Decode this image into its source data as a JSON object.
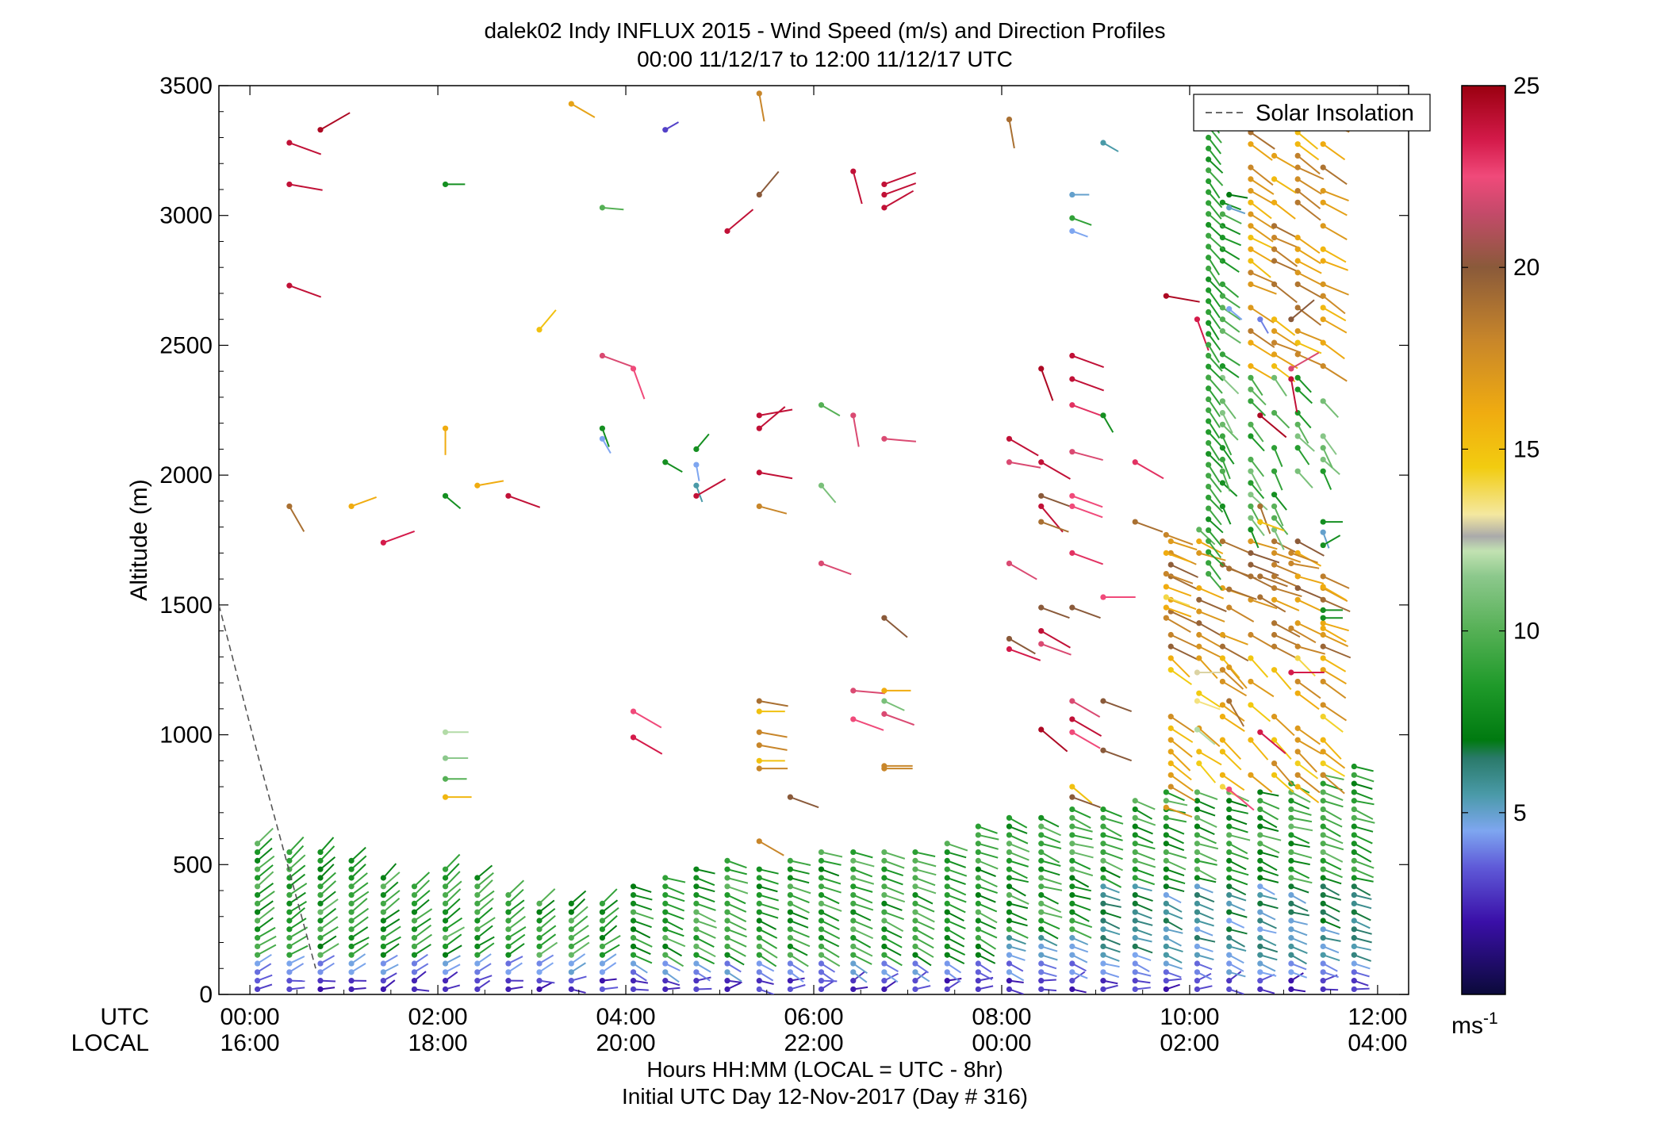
{
  "chart_data": {
    "type": "scatter",
    "title": "dalek02 Indy INFLUX 2015 - Wind Speed (m/s) and Direction Profiles",
    "subtitle": "00:00 11/12/17 to 12:00 11/12/17  UTC",
    "ylabel": "Altitude (m)",
    "xlabel": "Hours HH:MM  (LOCAL = UTC - 8hr)",
    "xlabel2": "Initial UTC Day 12-Nov-2017 (Day # 316)",
    "ylim": [
      0,
      3500
    ],
    "xlim": [
      -0.33,
      12.33
    ],
    "y_ticks": [
      0,
      500,
      1000,
      1500,
      2000,
      2500,
      3000,
      3500
    ],
    "y_tick_labels": [
      "0",
      "500",
      "1000",
      "1500",
      "2000",
      "2500",
      "3000",
      "3500"
    ],
    "x_ticks": [
      0,
      2,
      4,
      6,
      8,
      10,
      12
    ],
    "row_label_utc": "UTC",
    "row_label_local": "LOCAL",
    "x_tick_labels_utc": [
      "00:00",
      "02:00",
      "04:00",
      "06:00",
      "08:00",
      "10:00",
      "12:00"
    ],
    "x_tick_labels_local": [
      "16:00",
      "18:00",
      "20:00",
      "22:00",
      "00:00",
      "02:00",
      "04:00"
    ],
    "legend": {
      "placement": "top-right",
      "entries": [
        "Solar Insolation"
      ]
    },
    "solar_insolation_line": {
      "x": [
        -0.33,
        0.1,
        0.7
      ],
      "y": [
        1500,
        900,
        100
      ],
      "style": "dashed",
      "color": "#555555"
    },
    "colorbar": {
      "min": 0,
      "max": 25,
      "ticks": [
        5,
        10,
        15,
        20,
        25
      ],
      "tick_labels": [
        "5",
        "10",
        "15",
        "20",
        "25"
      ],
      "unit_base": "ms",
      "unit_exp": "-1",
      "stops": [
        {
          "v": 0,
          "c": "#0b0a3a"
        },
        {
          "v": 2,
          "c": "#3a0fa8"
        },
        {
          "v": 3.5,
          "c": "#5f5ad8"
        },
        {
          "v": 4.5,
          "c": "#7ea6f0"
        },
        {
          "v": 5.5,
          "c": "#4a9aa8"
        },
        {
          "v": 6.5,
          "c": "#2a7a6a"
        },
        {
          "v": 7,
          "c": "#007a10"
        },
        {
          "v": 8.5,
          "c": "#1f9a2a"
        },
        {
          "v": 10,
          "c": "#55b055"
        },
        {
          "v": 11.5,
          "c": "#8cc88c"
        },
        {
          "v": 12.2,
          "c": "#c2e2b2"
        },
        {
          "v": 12.6,
          "c": "#aaaaaa"
        },
        {
          "v": 13.2,
          "c": "#f4e8a0"
        },
        {
          "v": 14.5,
          "c": "#f2cc10"
        },
        {
          "v": 16,
          "c": "#f0ac10"
        },
        {
          "v": 18,
          "c": "#c8862a"
        },
        {
          "v": 20,
          "c": "#8a5a3a"
        },
        {
          "v": 21.5,
          "c": "#c44a6a"
        },
        {
          "v": 22.5,
          "c": "#f04a7a"
        },
        {
          "v": 23.5,
          "c": "#d41a4a"
        },
        {
          "v": 25,
          "c": "#9a0010"
        }
      ]
    },
    "profile_times": [
      0.08,
      0.42,
      0.75,
      1.08,
      1.42,
      1.75,
      2.08,
      2.42,
      2.75,
      3.08,
      3.42,
      3.75,
      4.08,
      4.42,
      4.75,
      5.08,
      5.42,
      5.75,
      6.08,
      6.42,
      6.75,
      7.08,
      7.42,
      7.75,
      8.08,
      8.42,
      8.75,
      9.08,
      9.42,
      9.75,
      10.08,
      10.42,
      10.75,
      11.08,
      11.42,
      11.75
    ],
    "boundary_layer_top_m": [
      590,
      555,
      555,
      530,
      460,
      420,
      490,
      470,
      400,
      380,
      360,
      365,
      420,
      480,
      510,
      520,
      500,
      540,
      570,
      560,
      550,
      580,
      600,
      650,
      690,
      710,
      730,
      740,
      760,
      780,
      790,
      800,
      810,
      820,
      860,
      900
    ],
    "upper_observations": [
      {
        "t": 0.42,
        "z": 3280,
        "s": 24,
        "d": 250
      },
      {
        "t": 0.42,
        "z": 3120,
        "s": 24,
        "d": 260
      },
      {
        "t": 0.42,
        "z": 2730,
        "s": 24,
        "d": 250
      },
      {
        "t": 0.75,
        "z": 3330,
        "s": 24.5,
        "d": 300
      },
      {
        "t": 0.42,
        "z": 1880,
        "s": 19,
        "d": 210
      },
      {
        "t": 1.08,
        "z": 1880,
        "s": 16,
        "d": 290
      },
      {
        "t": 1.42,
        "z": 1740,
        "s": 23.5,
        "d": 290
      },
      {
        "t": 2.08,
        "z": 3120,
        "s": 8,
        "d": 270
      },
      {
        "t": 2.08,
        "z": 2180,
        "s": 16,
        "d": 180
      },
      {
        "t": 2.08,
        "z": 1920,
        "s": 8,
        "d": 230
      },
      {
        "t": 2.42,
        "z": 1960,
        "s": 16,
        "d": 280
      },
      {
        "t": 2.75,
        "z": 1920,
        "s": 24,
        "d": 250
      },
      {
        "t": 3.08,
        "z": 2560,
        "s": 15,
        "d": 320
      },
      {
        "t": 3.42,
        "z": 3430,
        "s": 16.5,
        "d": 240
      },
      {
        "t": 3.75,
        "z": 3030,
        "s": 10,
        "d": 265
      },
      {
        "t": 3.75,
        "z": 2460,
        "s": 22,
        "d": 250
      },
      {
        "t": 3.75,
        "z": 2180,
        "s": 8,
        "d": 200
      },
      {
        "t": 3.75,
        "z": 2140,
        "s": 4.5,
        "d": 210
      },
      {
        "t": 2.08,
        "z": 1010,
        "s": 12,
        "d": 270
      },
      {
        "t": 2.08,
        "z": 910,
        "s": 11.5,
        "d": 270
      },
      {
        "t": 2.08,
        "z": 830,
        "s": 10,
        "d": 270
      },
      {
        "t": 2.08,
        "z": 760,
        "s": 15.5,
        "d": 270
      },
      {
        "t": 4.08,
        "z": 2410,
        "s": 22.5,
        "d": 200
      },
      {
        "t": 4.08,
        "z": 1090,
        "s": 22.5,
        "d": 240
      },
      {
        "t": 4.08,
        "z": 990,
        "s": 23.5,
        "d": 240
      },
      {
        "t": 4.42,
        "z": 3330,
        "s": 3,
        "d": 300
      },
      {
        "t": 4.42,
        "z": 2050,
        "s": 8,
        "d": 240
      },
      {
        "t": 4.75,
        "z": 2100,
        "s": 8,
        "d": 320
      },
      {
        "t": 4.75,
        "z": 2040,
        "s": 4.5,
        "d": 190
      },
      {
        "t": 4.75,
        "z": 1960,
        "s": 5.5,
        "d": 200
      },
      {
        "t": 4.75,
        "z": 1920,
        "s": 24,
        "d": 300
      },
      {
        "t": 5.08,
        "z": 2940,
        "s": 24,
        "d": 310
      },
      {
        "t": 5.42,
        "z": 3470,
        "s": 18,
        "d": 190
      },
      {
        "t": 5.42,
        "z": 3080,
        "s": 20,
        "d": 320
      },
      {
        "t": 5.42,
        "z": 2230,
        "s": 24,
        "d": 280
      },
      {
        "t": 5.42,
        "z": 2180,
        "s": 24,
        "d": 310
      },
      {
        "t": 5.42,
        "z": 2010,
        "s": 24,
        "d": 260
      },
      {
        "t": 5.42,
        "z": 1880,
        "s": 18,
        "d": 255
      },
      {
        "t": 5.42,
        "z": 1130,
        "s": 19,
        "d": 260
      },
      {
        "t": 5.42,
        "z": 1090,
        "s": 15,
        "d": 270
      },
      {
        "t": 5.42,
        "z": 1010,
        "s": 18,
        "d": 260
      },
      {
        "t": 5.42,
        "z": 960,
        "s": 18,
        "d": 260
      },
      {
        "t": 5.42,
        "z": 900,
        "s": 15,
        "d": 270
      },
      {
        "t": 5.42,
        "z": 870,
        "s": 18,
        "d": 270
      },
      {
        "t": 5.42,
        "z": 590,
        "s": 18,
        "d": 240
      },
      {
        "t": 5.75,
        "z": 760,
        "s": 20,
        "d": 250
      },
      {
        "t": 6.08,
        "z": 2270,
        "s": 10,
        "d": 240
      },
      {
        "t": 6.08,
        "z": 1960,
        "s": 11,
        "d": 220
      },
      {
        "t": 6.08,
        "z": 1660,
        "s": 22,
        "d": 250
      },
      {
        "t": 6.42,
        "z": 3170,
        "s": 24,
        "d": 195
      },
      {
        "t": 6.42,
        "z": 2230,
        "s": 22,
        "d": 190
      },
      {
        "t": 6.42,
        "z": 1170,
        "s": 22,
        "d": 265
      },
      {
        "t": 6.42,
        "z": 1060,
        "s": 22.5,
        "d": 250
      },
      {
        "t": 6.75,
        "z": 3120,
        "s": 24,
        "d": 290
      },
      {
        "t": 6.75,
        "z": 3080,
        "s": 24,
        "d": 290
      },
      {
        "t": 6.75,
        "z": 3030,
        "s": 24,
        "d": 300
      },
      {
        "t": 6.75,
        "z": 2140,
        "s": 22,
        "d": 265
      },
      {
        "t": 6.75,
        "z": 1450,
        "s": 20,
        "d": 230
      },
      {
        "t": 6.75,
        "z": 1170,
        "s": 16,
        "d": 270
      },
      {
        "t": 6.75,
        "z": 1130,
        "s": 11,
        "d": 245
      },
      {
        "t": 6.75,
        "z": 1080,
        "s": 22,
        "d": 250
      },
      {
        "t": 6.75,
        "z": 880,
        "s": 18,
        "d": 270
      },
      {
        "t": 6.75,
        "z": 870,
        "s": 18,
        "d": 270
      },
      {
        "t": 8.08,
        "z": 3370,
        "s": 19,
        "d": 190
      },
      {
        "t": 8.08,
        "z": 2140,
        "s": 24,
        "d": 240
      },
      {
        "t": 8.08,
        "z": 2050,
        "s": 22,
        "d": 260
      },
      {
        "t": 8.08,
        "z": 1660,
        "s": 22,
        "d": 240
      },
      {
        "t": 8.08,
        "z": 1370,
        "s": 20,
        "d": 240
      },
      {
        "t": 8.08,
        "z": 1330,
        "s": 23.5,
        "d": 250
      },
      {
        "t": 8.42,
        "z": 2410,
        "s": 24.5,
        "d": 200
      },
      {
        "t": 8.42,
        "z": 2050,
        "s": 24,
        "d": 240
      },
      {
        "t": 8.42,
        "z": 1920,
        "s": 20,
        "d": 250
      },
      {
        "t": 8.42,
        "z": 1880,
        "s": 24,
        "d": 220
      },
      {
        "t": 8.42,
        "z": 1820,
        "s": 19,
        "d": 250
      },
      {
        "t": 8.42,
        "z": 1490,
        "s": 20,
        "d": 250
      },
      {
        "t": 8.42,
        "z": 1400,
        "s": 24,
        "d": 240
      },
      {
        "t": 8.42,
        "z": 1350,
        "s": 22,
        "d": 250
      },
      {
        "t": 8.42,
        "z": 1020,
        "s": 24.5,
        "d": 230
      },
      {
        "t": 8.75,
        "z": 2460,
        "s": 24,
        "d": 250
      },
      {
        "t": 8.75,
        "z": 2370,
        "s": 24,
        "d": 250
      },
      {
        "t": 8.75,
        "z": 2270,
        "s": 23,
        "d": 250
      },
      {
        "t": 8.75,
        "z": 2090,
        "s": 22,
        "d": 255
      },
      {
        "t": 8.75,
        "z": 1920,
        "s": 22.5,
        "d": 250
      },
      {
        "t": 8.75,
        "z": 1880,
        "s": 22.5,
        "d": 250
      },
      {
        "t": 8.75,
        "z": 1700,
        "s": 23,
        "d": 250
      },
      {
        "t": 8.75,
        "z": 1490,
        "s": 20,
        "d": 250
      },
      {
        "t": 8.75,
        "z": 1130,
        "s": 22,
        "d": 240
      },
      {
        "t": 8.75,
        "z": 1060,
        "s": 24,
        "d": 240
      },
      {
        "t": 8.75,
        "z": 1010,
        "s": 22.5,
        "d": 240
      },
      {
        "t": 8.75,
        "z": 800,
        "s": 15,
        "d": 230
      },
      {
        "t": 8.75,
        "z": 760,
        "s": 20,
        "d": 250
      },
      {
        "t": 8.75,
        "z": 3080,
        "s": 5,
        "d": 270
      },
      {
        "t": 8.75,
        "z": 2990,
        "s": 9,
        "d": 250
      },
      {
        "t": 8.75,
        "z": 2940,
        "s": 4.5,
        "d": 250
      },
      {
        "t": 9.08,
        "z": 3280,
        "s": 5.5,
        "d": 240
      },
      {
        "t": 9.08,
        "z": 2230,
        "s": 8,
        "d": 210
      },
      {
        "t": 9.08,
        "z": 1530,
        "s": 22.5,
        "d": 270
      },
      {
        "t": 9.08,
        "z": 1130,
        "s": 20,
        "d": 250
      },
      {
        "t": 9.08,
        "z": 940,
        "s": 20,
        "d": 250
      },
      {
        "t": 9.42,
        "z": 2050,
        "s": 23,
        "d": 240
      },
      {
        "t": 9.42,
        "z": 1820,
        "s": 19,
        "d": 250
      },
      {
        "t": 9.75,
        "z": 2690,
        "s": 24.5,
        "d": 260
      },
      {
        "t": 9.75,
        "z": 1770,
        "s": 18,
        "d": 250
      },
      {
        "t": 9.75,
        "z": 1700,
        "s": 16,
        "d": 250
      },
      {
        "t": 9.75,
        "z": 1620,
        "s": 18,
        "d": 250
      },
      {
        "t": 9.75,
        "z": 1570,
        "s": 16,
        "d": 250
      },
      {
        "t": 9.75,
        "z": 1530,
        "s": 14,
        "d": 250
      },
      {
        "t": 9.75,
        "z": 1490,
        "s": 16,
        "d": 250
      },
      {
        "t": 9.75,
        "z": 1450,
        "s": 18,
        "d": 240
      },
      {
        "t": 9.75,
        "z": 720,
        "s": 17,
        "d": 250
      },
      {
        "t": 10.08,
        "z": 2600,
        "s": 23.5,
        "d": 200
      },
      {
        "t": 10.08,
        "z": 1240,
        "s": 13,
        "d": 270
      },
      {
        "t": 10.08,
        "z": 1130,
        "s": 13.5,
        "d": 250
      },
      {
        "t": 10.08,
        "z": 1020,
        "s": 12,
        "d": 230
      },
      {
        "t": 10.42,
        "z": 3080,
        "s": 7,
        "d": 260
      },
      {
        "t": 10.42,
        "z": 3030,
        "s": 5,
        "d": 250
      },
      {
        "t": 10.42,
        "z": 2640,
        "s": 4.5,
        "d": 230
      },
      {
        "t": 10.42,
        "z": 1640,
        "s": 19,
        "d": 250
      },
      {
        "t": 10.42,
        "z": 1560,
        "s": 19,
        "d": 250
      },
      {
        "t": 10.42,
        "z": 1490,
        "s": 18,
        "d": 240
      },
      {
        "t": 10.42,
        "z": 1260,
        "s": 17,
        "d": 220
      },
      {
        "t": 10.42,
        "z": 1130,
        "s": 19,
        "d": 210
      },
      {
        "t": 10.42,
        "z": 790,
        "s": 22.5,
        "d": 230
      },
      {
        "t": 10.75,
        "z": 2600,
        "s": 4,
        "d": 210
      },
      {
        "t": 10.75,
        "z": 2230,
        "s": 24.5,
        "d": 230
      },
      {
        "t": 10.75,
        "z": 1880,
        "s": 19,
        "d": 200
      },
      {
        "t": 10.75,
        "z": 1820,
        "s": 15,
        "d": 250
      },
      {
        "t": 10.75,
        "z": 1610,
        "s": 19,
        "d": 250
      },
      {
        "t": 10.75,
        "z": 1530,
        "s": 19,
        "d": 240
      },
      {
        "t": 10.75,
        "z": 1010,
        "s": 23.5,
        "d": 230
      },
      {
        "t": 11.08,
        "z": 2600,
        "s": 20,
        "d": 310
      },
      {
        "t": 11.08,
        "z": 2410,
        "s": 22,
        "d": 300
      },
      {
        "t": 11.08,
        "z": 2370,
        "s": 24,
        "d": 190
      },
      {
        "t": 11.08,
        "z": 1700,
        "s": 18,
        "d": 250
      },
      {
        "t": 11.08,
        "z": 1660,
        "s": 18,
        "d": 260
      },
      {
        "t": 11.08,
        "z": 1410,
        "s": 18,
        "d": 240
      },
      {
        "t": 11.08,
        "z": 1240,
        "s": 23.5,
        "d": 270
      },
      {
        "t": 11.42,
        "z": 1820,
        "s": 8,
        "d": 270
      },
      {
        "t": 11.42,
        "z": 1780,
        "s": 5,
        "d": 200
      },
      {
        "t": 11.42,
        "z": 1730,
        "s": 8,
        "d": 300
      },
      {
        "t": 11.42,
        "z": 1570,
        "s": 16,
        "d": 240
      },
      {
        "t": 11.42,
        "z": 1480,
        "s": 8,
        "d": 270
      },
      {
        "t": 11.42,
        "z": 1450,
        "s": 8,
        "d": 270
      },
      {
        "t": 11.42,
        "z": 1410,
        "s": 16,
        "d": 240
      }
    ],
    "gust_column_10_2": {
      "t": 10.2,
      "z_start": 1620,
      "z_end": 3450,
      "s": 8,
      "d": 210
    },
    "jet_columns": [
      {
        "t_start": 9.72,
        "t_end": 11.42,
        "z_start": 800,
        "z_end": 3500
      }
    ]
  }
}
